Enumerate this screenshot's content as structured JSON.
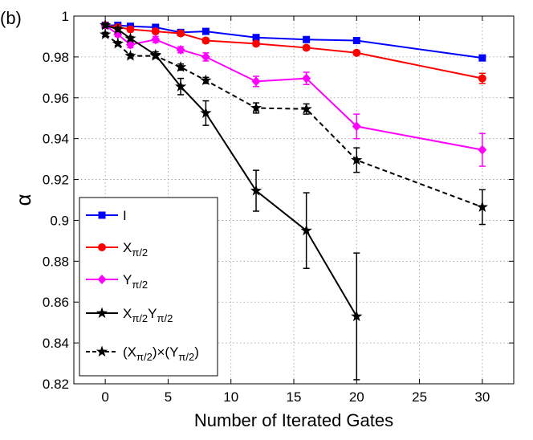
{
  "panel_label": "(b)",
  "chart_data": {
    "type": "line",
    "title": "",
    "xlabel": "Number of Iterated Gates",
    "ylabel": "α",
    "xlim": [
      -2.5,
      32.5
    ],
    "ylim": [
      0.82,
      1.0
    ],
    "x_ticks": [
      0,
      5,
      10,
      15,
      20,
      25,
      30
    ],
    "y_ticks": [
      0.82,
      0.84,
      0.86,
      0.88,
      0.9,
      0.92,
      0.94,
      0.96,
      0.98,
      1
    ],
    "x_tick_labels": [
      "0",
      "5",
      "10",
      "15",
      "20",
      "25",
      "30"
    ],
    "y_tick_labels": [
      "0.82",
      "0.84",
      "0.86",
      "0.88",
      "0.9",
      "0.92",
      "0.94",
      "0.96",
      "0.98",
      "1"
    ],
    "grid": true,
    "legend_position": "bottom-left",
    "series": [
      {
        "legend": {
          "main": "I",
          "sub1": "",
          "mid": "",
          "sub2": "",
          "end": ""
        },
        "color": "#0000ff",
        "marker": "square",
        "dashed": false,
        "x": [
          0,
          1,
          2,
          4,
          6,
          8,
          12,
          16,
          20,
          30
        ],
        "y": [
          0.9955,
          0.9955,
          0.995,
          0.9945,
          0.992,
          0.9925,
          0.9895,
          0.9885,
          0.988,
          0.9795
        ],
        "err": [
          0.001,
          0.001,
          0.001,
          0.001,
          0.001,
          0.001,
          0.001,
          0.001,
          0.001,
          0.0012
        ]
      },
      {
        "legend": {
          "main": "X",
          "sub1": "π/2",
          "mid": "",
          "sub2": "",
          "end": ""
        },
        "color": "#ff0000",
        "marker": "circle",
        "dashed": false,
        "x": [
          0,
          1,
          2,
          4,
          6,
          8,
          12,
          16,
          20,
          30
        ],
        "y": [
          0.9955,
          0.9945,
          0.9935,
          0.9925,
          0.9915,
          0.988,
          0.9865,
          0.9845,
          0.982,
          0.9695
        ],
        "err": [
          0.001,
          0.001,
          0.001,
          0.001,
          0.001,
          0.0012,
          0.001,
          0.001,
          0.001,
          0.0025
        ]
      },
      {
        "legend": {
          "main": "Y",
          "sub1": "π/2",
          "mid": "",
          "sub2": "",
          "end": ""
        },
        "color": "#ff00ff",
        "marker": "diamond",
        "dashed": false,
        "x": [
          0,
          1,
          2,
          4,
          6,
          8,
          12,
          16,
          20,
          30
        ],
        "y": [
          0.9955,
          0.991,
          0.986,
          0.9885,
          0.9835,
          0.98,
          0.968,
          0.9695,
          0.946,
          0.9345
        ],
        "err": [
          0.001,
          0.001,
          0.0015,
          0.0015,
          0.0015,
          0.002,
          0.0025,
          0.003,
          0.006,
          0.008
        ]
      },
      {
        "legend": {
          "main": "X",
          "sub1": "π/2",
          "mid": "Y",
          "sub2": "π/2",
          "end": ""
        },
        "color": "#000000",
        "marker": "star",
        "dashed": false,
        "x": [
          0,
          1,
          2,
          4,
          6,
          8,
          12,
          16,
          20
        ],
        "y": [
          0.9955,
          0.9935,
          0.989,
          0.981,
          0.9655,
          0.9525,
          0.9145,
          0.895,
          0.853
        ],
        "err": [
          0.001,
          0.001,
          0.001,
          0.0015,
          0.004,
          0.006,
          0.01,
          0.0185,
          0.031
        ]
      },
      {
        "legend": {
          "main": "(X",
          "sub1": "π/2",
          "mid": ")×(Y",
          "sub2": "π/2",
          "end": ")"
        },
        "color": "#000000",
        "marker": "star",
        "dashed": true,
        "x": [
          0,
          1,
          2,
          4,
          6,
          8,
          12,
          16,
          20,
          30
        ],
        "y": [
          0.991,
          0.9865,
          0.9805,
          0.9805,
          0.975,
          0.9685,
          0.955,
          0.9545,
          0.9295,
          0.9065
        ],
        "err": [
          0.001,
          0.001,
          0.001,
          0.001,
          0.0015,
          0.0015,
          0.0025,
          0.0025,
          0.006,
          0.0085
        ]
      }
    ]
  }
}
